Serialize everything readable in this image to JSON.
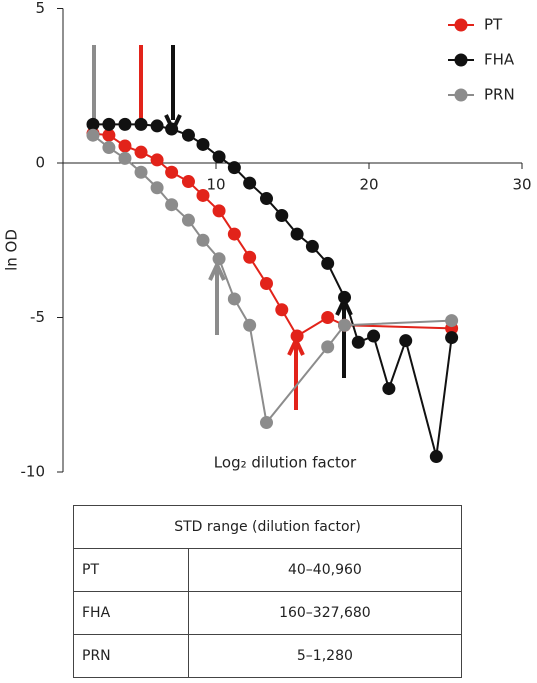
{
  "chart_data": {
    "type": "line",
    "x_label": "Log₂ dilution factor",
    "y_label": "ln OD",
    "xlim": [
      0,
      30
    ],
    "xticks": [
      10,
      20,
      30
    ],
    "ylim": [
      -10,
      5
    ],
    "yticks": [
      5,
      0,
      -5,
      -10
    ],
    "legend": "upper right",
    "series": [
      {
        "name": "PT",
        "color": "#e2231a",
        "x": [
          1.96,
          3.0,
          4.05,
          5.1,
          6.15,
          7.1,
          8.2,
          9.15,
          10.2,
          11.2,
          12.2,
          13.3,
          14.3,
          15.3,
          17.3,
          18.4,
          25.4
        ],
        "values": [
          0.95,
          0.9,
          0.55,
          0.35,
          0.1,
          -0.3,
          -0.6,
          -1.05,
          -1.55,
          -2.3,
          -3.05,
          -3.9,
          -4.75,
          -5.6,
          -5.0,
          -5.25,
          -5.35
        ]
      },
      {
        "name": "FHA",
        "color": "#111111",
        "x": [
          1.96,
          3.0,
          4.05,
          5.1,
          6.15,
          7.1,
          8.2,
          9.15,
          10.2,
          11.2,
          12.2,
          13.3,
          14.3,
          15.3,
          16.3,
          17.3,
          18.4,
          19.3,
          20.3,
          21.3,
          22.4,
          24.4,
          25.4
        ],
        "values": [
          1.25,
          1.25,
          1.25,
          1.25,
          1.2,
          1.1,
          0.9,
          0.6,
          0.2,
          -0.15,
          -0.65,
          -1.15,
          -1.7,
          -2.3,
          -2.7,
          -3.25,
          -4.35,
          -5.8,
          -5.6,
          -7.3,
          -5.75,
          -9.5,
          -5.65
        ]
      },
      {
        "name": "PRN",
        "color": "#8c8c8c",
        "x": [
          1.96,
          3.0,
          4.05,
          5.1,
          6.15,
          7.1,
          8.2,
          9.15,
          10.2,
          11.2,
          12.2,
          13.3,
          17.3,
          18.4,
          25.4
        ],
        "values": [
          0.9,
          0.5,
          0.15,
          -0.3,
          -0.8,
          -1.35,
          -1.85,
          -2.5,
          -3.1,
          -4.4,
          -5.25,
          -8.4,
          -5.95,
          -5.25,
          -5.1
        ]
      }
    ]
  },
  "table": {
    "header": "STD range (dilution factor)",
    "rows": [
      [
        "PT",
        "40–40,960"
      ],
      [
        "FHA",
        "160–327,680"
      ],
      [
        "PRN",
        "5–1,280"
      ]
    ]
  }
}
